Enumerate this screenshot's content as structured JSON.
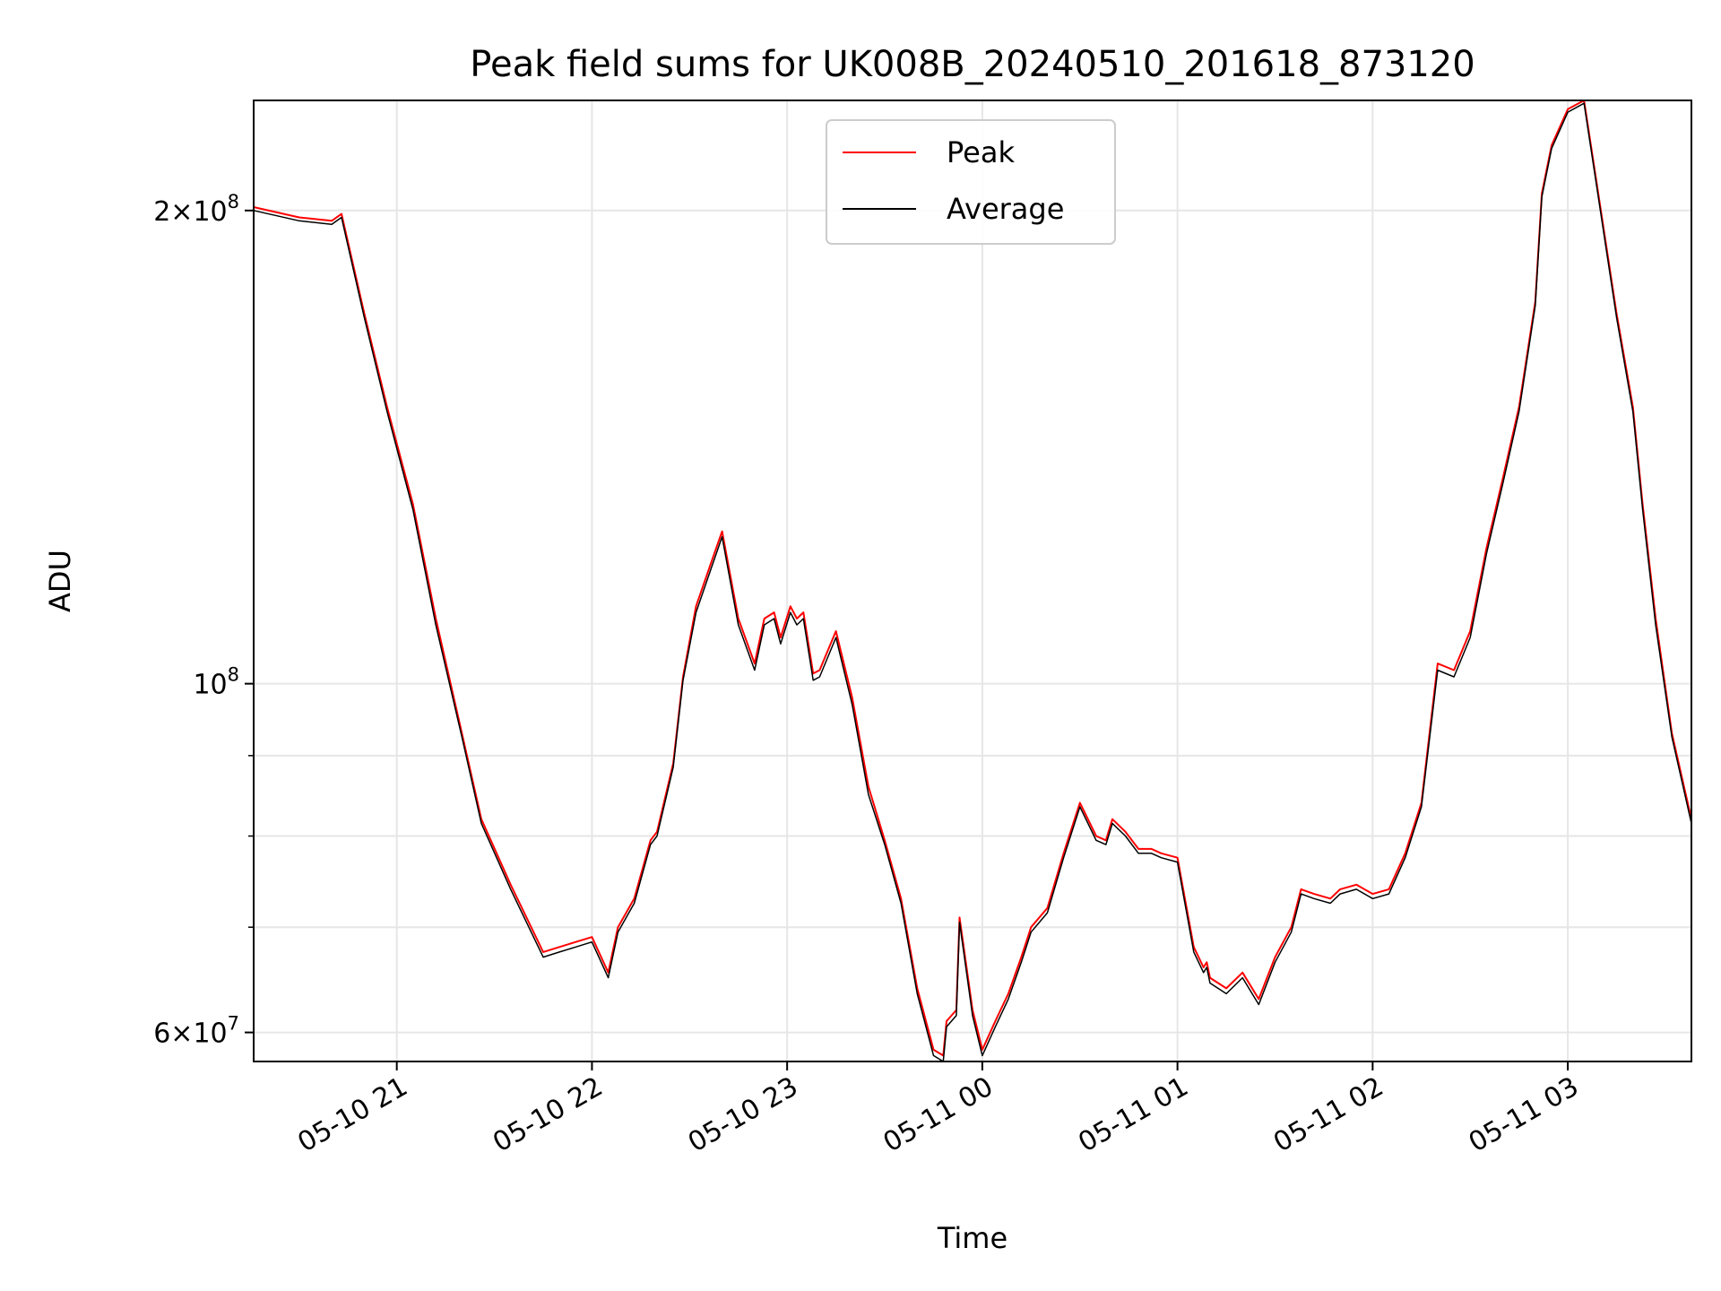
{
  "chart_data": {
    "type": "line",
    "title": "Peak field sums for UK008B_20240510_201618_873120",
    "xlabel": "Time",
    "ylabel": "ADU",
    "yscale": "log",
    "xlim": [
      "2024-05-10 20:16",
      "2024-05-11 03:38"
    ],
    "ylim": [
      57500000,
      235000000
    ],
    "x_ticks": [
      "05-10 21",
      "05-10 22",
      "05-10 23",
      "05-11 00",
      "05-11 01",
      "05-11 02",
      "05-11 03"
    ],
    "y_ticks": [
      {
        "value": 60000000,
        "mantissa": "6",
        "exponent": "7"
      },
      {
        "value": 100000000,
        "mantissa": "",
        "exponent": "8"
      },
      {
        "value": 200000000,
        "mantissa": "2",
        "exponent": "8"
      }
    ],
    "y_minor_ticks": [
      70000000,
      80000000,
      90000000
    ],
    "grid": true,
    "legend_position": "upper center",
    "colors": {
      "peak": "#ff0000",
      "average": "#000000",
      "grid": "#e6e6e6"
    },
    "series": [
      {
        "name": "Peak",
        "color": "#ff0000",
        "x": [
          "2024-05-10 20:16",
          "2024-05-10 20:30",
          "2024-05-10 20:40",
          "2024-05-10 20:43",
          "2024-05-10 20:50",
          "2024-05-10 20:57",
          "2024-05-10 21:05",
          "2024-05-10 21:12",
          "2024-05-10 21:20",
          "2024-05-10 21:26",
          "2024-05-10 21:35",
          "2024-05-10 21:45",
          "2024-05-10 21:50",
          "2024-05-10 21:55",
          "2024-05-10 22:00",
          "2024-05-10 22:05",
          "2024-05-10 22:08",
          "2024-05-10 22:13",
          "2024-05-10 22:18",
          "2024-05-10 22:20",
          "2024-05-10 22:25",
          "2024-05-10 22:28",
          "2024-05-10 22:32",
          "2024-05-10 22:37",
          "2024-05-10 22:40",
          "2024-05-10 22:45",
          "2024-05-10 22:50",
          "2024-05-10 22:53",
          "2024-05-10 22:56",
          "2024-05-10 22:58",
          "2024-05-10 23:01",
          "2024-05-10 23:03",
          "2024-05-10 23:05",
          "2024-05-10 23:08",
          "2024-05-10 23:10",
          "2024-05-10 23:15",
          "2024-05-10 23:20",
          "2024-05-10 23:25",
          "2024-05-10 23:30",
          "2024-05-10 23:35",
          "2024-05-10 23:40",
          "2024-05-10 23:45",
          "2024-05-10 23:48",
          "2024-05-10 23:49",
          "2024-05-10 23:52",
          "2024-05-10 23:53",
          "2024-05-10 23:57",
          "2024-05-11 00:00",
          "2024-05-11 00:04",
          "2024-05-11 00:08",
          "2024-05-11 00:12",
          "2024-05-11 00:15",
          "2024-05-11 00:20",
          "2024-05-11 00:25",
          "2024-05-11 00:30",
          "2024-05-11 00:35",
          "2024-05-11 00:38",
          "2024-05-11 00:40",
          "2024-05-11 00:44",
          "2024-05-11 00:48",
          "2024-05-11 00:52",
          "2024-05-11 00:55",
          "2024-05-11 01:00",
          "2024-05-11 01:05",
          "2024-05-11 01:08",
          "2024-05-11 01:09",
          "2024-05-11 01:10",
          "2024-05-11 01:15",
          "2024-05-11 01:20",
          "2024-05-11 01:25",
          "2024-05-11 01:30",
          "2024-05-11 01:35",
          "2024-05-11 01:38",
          "2024-05-11 01:42",
          "2024-05-11 01:47",
          "2024-05-11 01:50",
          "2024-05-11 01:55",
          "2024-05-11 02:00",
          "2024-05-11 02:05",
          "2024-05-11 02:10",
          "2024-05-11 02:15",
          "2024-05-11 02:20",
          "2024-05-11 02:25",
          "2024-05-11 02:30",
          "2024-05-11 02:35",
          "2024-05-11 02:40",
          "2024-05-11 02:45",
          "2024-05-11 02:50",
          "2024-05-11 02:52",
          "2024-05-11 02:55",
          "2024-05-11 03:00",
          "2024-05-11 03:05",
          "2024-05-11 03:10",
          "2024-05-11 03:15",
          "2024-05-11 03:20",
          "2024-05-11 03:23",
          "2024-05-11 03:27",
          "2024-05-11 03:32",
          "2024-05-11 03:38"
        ],
        "values": [
          201000000,
          198000000,
          197000000,
          199000000,
          172000000,
          150000000,
          130000000,
          110000000,
          93000000,
          82000000,
          74500000,
          67500000,
          68000000,
          68500000,
          69000000,
          65500000,
          70000000,
          73000000,
          79500000,
          80500000,
          89000000,
          101000000,
          112000000,
          120000000,
          125000000,
          110000000,
          103000000,
          110000000,
          111000000,
          107000000,
          112000000,
          110000000,
          111000000,
          101500000,
          102000000,
          108000000,
          98000000,
          86000000,
          79500000,
          73000000,
          64000000,
          58500000,
          58000000,
          61000000,
          62000000,
          71000000,
          62000000,
          58500000,
          61000000,
          63500000,
          67000000,
          70000000,
          72000000,
          78000000,
          84000000,
          80000000,
          79500000,
          82000000,
          80500000,
          78500000,
          78500000,
          78000000,
          77500000,
          68000000,
          66000000,
          66500000,
          65000000,
          64000000,
          65500000,
          63000000,
          67000000,
          70000000,
          74000000,
          73500000,
          73000000,
          74000000,
          74500000,
          73500000,
          74000000,
          78000000,
          84000000,
          103000000,
          102000000,
          108000000,
          122000000,
          135000000,
          150000000,
          175000000,
          205000000,
          220000000,
          232000000,
          235000000,
          201000000,
          172000000,
          150000000,
          130000000,
          110000000,
          93000000,
          82000000
        ],
        "note_spikes": []
      },
      {
        "name": "Average",
        "color": "#000000",
        "x": [
          "2024-05-10 20:16",
          "2024-05-10 20:30",
          "2024-05-10 20:40",
          "2024-05-10 20:43",
          "2024-05-10 20:50",
          "2024-05-10 20:57",
          "2024-05-10 21:05",
          "2024-05-10 21:12",
          "2024-05-10 21:20",
          "2024-05-10 21:26",
          "2024-05-10 21:35",
          "2024-05-10 21:45",
          "2024-05-10 21:50",
          "2024-05-10 21:55",
          "2024-05-10 22:00",
          "2024-05-10 22:05",
          "2024-05-10 22:08",
          "2024-05-10 22:13",
          "2024-05-10 22:18",
          "2024-05-10 22:20",
          "2024-05-10 22:25",
          "2024-05-10 22:28",
          "2024-05-10 22:32",
          "2024-05-10 22:37",
          "2024-05-10 22:40",
          "2024-05-10 22:45",
          "2024-05-10 22:50",
          "2024-05-10 22:53",
          "2024-05-10 22:56",
          "2024-05-10 22:58",
          "2024-05-10 23:01",
          "2024-05-10 23:03",
          "2024-05-10 23:05",
          "2024-05-10 23:08",
          "2024-05-10 23:10",
          "2024-05-10 23:15",
          "2024-05-10 23:20",
          "2024-05-10 23:25",
          "2024-05-10 23:30",
          "2024-05-10 23:35",
          "2024-05-10 23:40",
          "2024-05-10 23:45",
          "2024-05-10 23:48",
          "2024-05-10 23:49",
          "2024-05-10 23:52",
          "2024-05-10 23:53",
          "2024-05-10 23:57",
          "2024-05-11 00:00",
          "2024-05-11 00:04",
          "2024-05-11 00:08",
          "2024-05-11 00:12",
          "2024-05-11 00:15",
          "2024-05-11 00:20",
          "2024-05-11 00:25",
          "2024-05-11 00:30",
          "2024-05-11 00:35",
          "2024-05-11 00:38",
          "2024-05-11 00:40",
          "2024-05-11 00:44",
          "2024-05-11 00:48",
          "2024-05-11 00:52",
          "2024-05-11 00:55",
          "2024-05-11 01:00",
          "2024-05-11 01:05",
          "2024-05-11 01:08",
          "2024-05-11 01:09",
          "2024-05-11 01:10",
          "2024-05-11 01:15",
          "2024-05-11 01:20",
          "2024-05-11 01:25",
          "2024-05-11 01:30",
          "2024-05-11 01:35",
          "2024-05-11 01:38",
          "2024-05-11 01:42",
          "2024-05-11 01:47",
          "2024-05-11 01:50",
          "2024-05-11 01:55",
          "2024-05-11 02:00",
          "2024-05-11 02:05",
          "2024-05-11 02:10",
          "2024-05-11 02:15",
          "2024-05-11 02:20",
          "2024-05-11 02:25",
          "2024-05-11 02:30",
          "2024-05-11 02:35",
          "2024-05-11 02:40",
          "2024-05-11 02:45",
          "2024-05-11 02:50",
          "2024-05-11 02:52",
          "2024-05-11 02:55",
          "2024-05-11 03:00",
          "2024-05-11 03:05",
          "2024-05-11 03:10",
          "2024-05-11 03:15",
          "2024-05-11 03:20",
          "2024-05-11 03:23",
          "2024-05-11 03:27",
          "2024-05-11 03:32",
          "2024-05-11 03:38"
        ],
        "values": [
          200000000,
          197000000,
          196000000,
          198000000,
          171000000,
          149000000,
          129000000,
          109000000,
          92500000,
          81500000,
          74000000,
          67000000,
          67500000,
          68000000,
          68500000,
          65000000,
          69500000,
          72500000,
          79000000,
          80000000,
          88500000,
          100500000,
          111000000,
          119000000,
          124000000,
          109000000,
          102000000,
          109000000,
          110000000,
          106000000,
          111000000,
          109000000,
          110000000,
          100500000,
          101000000,
          107000000,
          97000000,
          85000000,
          79000000,
          72500000,
          63500000,
          58000000,
          57500000,
          60500000,
          61500000,
          70500000,
          61500000,
          58000000,
          60500000,
          63000000,
          66500000,
          69500000,
          71500000,
          77500000,
          83500000,
          79500000,
          79000000,
          81500000,
          80000000,
          78000000,
          78000000,
          77500000,
          77000000,
          67500000,
          65500000,
          66000000,
          64500000,
          63500000,
          65000000,
          62500000,
          66500000,
          69500000,
          73500000,
          73000000,
          72500000,
          73500000,
          74000000,
          73000000,
          73500000,
          77500000,
          83500000,
          102000000,
          101000000,
          107000000,
          121000000,
          134000000,
          149000000,
          174000000,
          204000000,
          219000000,
          231000000,
          234000000,
          200000000,
          171000000,
          149000000,
          129000000,
          109000000,
          92500000,
          81500000
        ]
      }
    ]
  }
}
